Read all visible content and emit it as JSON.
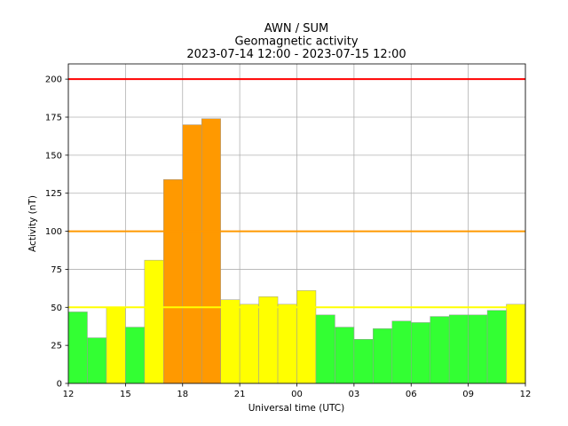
{
  "chart_data": {
    "type": "bar",
    "title_lines": [
      "AWN / SUM",
      "Geomagnetic activity",
      "2023-07-14 12:00 - 2023-07-15 12:00"
    ],
    "xlabel": "Universal time (UTC)",
    "ylabel": "Activity (nT)",
    "ylim": [
      0,
      210
    ],
    "xlim_hours": [
      0,
      24
    ],
    "grid": true,
    "x_ticks": [
      {
        "h": 0,
        "label": "12"
      },
      {
        "h": 3,
        "label": "15"
      },
      {
        "h": 6,
        "label": "18"
      },
      {
        "h": 9,
        "label": "21"
      },
      {
        "h": 12,
        "label": "00"
      },
      {
        "h": 15,
        "label": "03"
      },
      {
        "h": 18,
        "label": "06"
      },
      {
        "h": 21,
        "label": "09"
      },
      {
        "h": 24,
        "label": "12"
      }
    ],
    "y_ticks": [
      0,
      25,
      50,
      75,
      100,
      125,
      150,
      175,
      200
    ],
    "categories": [
      "12",
      "13",
      "14",
      "15",
      "16",
      "17",
      "18",
      "19",
      "20",
      "21",
      "22",
      "23",
      "00",
      "01",
      "02",
      "03",
      "04",
      "05",
      "06",
      "07",
      "08",
      "09",
      "10",
      "11"
    ],
    "values": [
      47,
      30,
      50,
      37,
      81,
      134,
      170,
      174,
      55,
      52,
      57,
      52,
      61,
      45,
      37,
      29,
      36,
      41,
      40,
      44,
      45,
      45,
      48,
      52
    ],
    "thresholds": [
      {
        "value": 50,
        "color": "#ffff00"
      },
      {
        "value": 100,
        "color": "#ff9900"
      },
      {
        "value": 200,
        "color": "#ff0000"
      }
    ],
    "bar_colors": {
      "low": "#33ff33",
      "medium": "#ffff00",
      "high": "#ff9900",
      "severe": "#ff0000"
    }
  }
}
